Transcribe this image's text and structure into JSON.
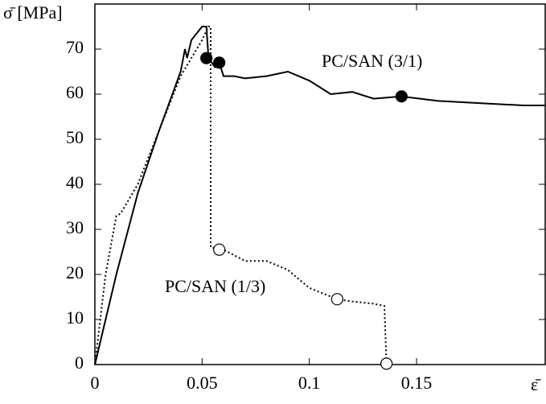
{
  "chart_data": {
    "type": "line",
    "ylabel": "σ̄ [MPa]",
    "xlabel": "ε̄",
    "xlim": [
      0,
      0.21
    ],
    "ylim": [
      0,
      80
    ],
    "xticks": [
      0,
      0.05,
      0.1,
      0.15
    ],
    "yticks": [
      0,
      10,
      20,
      30,
      40,
      50,
      60,
      70
    ],
    "series": [
      {
        "name": "PC/SAN (3/1)",
        "color": "#000000",
        "style": "solid",
        "marker_fill": "#000000",
        "x": [
          0,
          0.01,
          0.02,
          0.03,
          0.04,
          0.042,
          0.043,
          0.045,
          0.05,
          0.052,
          0.053,
          0.056,
          0.058,
          0.06,
          0.065,
          0.07,
          0.08,
          0.09,
          0.095,
          0.1,
          0.11,
          0.12,
          0.13,
          0.143,
          0.16,
          0.18,
          0.2,
          0.21
        ],
        "values": [
          0,
          20,
          38,
          52,
          65,
          70,
          68,
          72,
          75,
          75,
          68,
          66,
          67,
          64,
          64,
          63.5,
          64,
          65,
          64,
          63,
          60,
          60.5,
          59,
          59.5,
          58.5,
          58,
          57.5,
          57.5
        ],
        "marker_x": [
          0.052,
          0.058,
          0.143
        ],
        "marker_values": [
          68,
          67,
          59.5
        ]
      },
      {
        "name": "PC/SAN (1/3)",
        "color": "#000000",
        "style": "dotted",
        "marker_fill": "#ffffff",
        "x": [
          0,
          0.005,
          0.01,
          0.012,
          0.02,
          0.03,
          0.04,
          0.05,
          0.053,
          0.054,
          0.054,
          0.06,
          0.07,
          0.08,
          0.09,
          0.1,
          0.113,
          0.12,
          0.13,
          0.135,
          0.136
        ],
        "values": [
          0,
          20,
          33,
          33.5,
          40,
          52,
          64,
          72,
          75,
          75,
          26,
          25.5,
          23,
          23,
          21,
          17,
          14.5,
          14,
          13.5,
          13,
          0
        ],
        "marker_x": [
          0.058,
          0.113,
          0.136
        ],
        "marker_values": [
          25.5,
          14.5,
          0.2
        ]
      }
    ]
  }
}
